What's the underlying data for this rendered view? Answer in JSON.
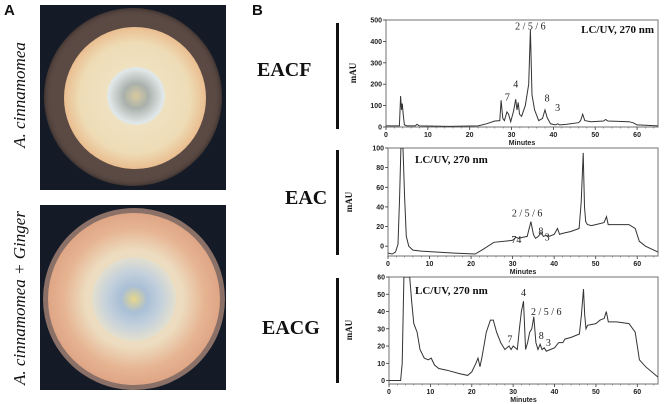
{
  "panel_a": {
    "letter": "A",
    "plates": [
      {
        "label": "A. cinnamomea",
        "description": "culture plate with orange-beige mycelium and white center"
      },
      {
        "label": "A. cinnamomea + Ginger",
        "description": "culture plate with salmon-orange mycelium and bluish-white center"
      }
    ]
  },
  "panel_b": {
    "letter": "B",
    "samples": [
      "EACF",
      "EAC",
      "EACG"
    ]
  },
  "chart_data": [
    {
      "type": "line",
      "sample": "EACF",
      "title": "LC/UV, 270 nm",
      "xlabel": "Minutes",
      "ylabel": "mAU",
      "xlim": [
        0,
        65
      ],
      "ylim": [
        0,
        500
      ],
      "xticks": [
        0,
        10,
        20,
        30,
        40,
        50,
        60
      ],
      "yticks": [
        0,
        100,
        200,
        300,
        400,
        500
      ],
      "grid": false,
      "annotations": [
        {
          "text": "2 / 5 / 6",
          "x": 34.5,
          "y": 455
        },
        {
          "text": "4",
          "x": 31,
          "y": 185
        },
        {
          "text": "7",
          "x": 29,
          "y": 125
        },
        {
          "text": "8",
          "x": 38.5,
          "y": 120
        },
        {
          "text": "3",
          "x": 41,
          "y": 75
        }
      ],
      "x": [
        0,
        3.2,
        3.5,
        3.7,
        3.9,
        4.1,
        4.4,
        5,
        7,
        7.4,
        8,
        15,
        22,
        24,
        26,
        27.2,
        27.5,
        27.9,
        28.3,
        28.9,
        29.3,
        29.8,
        30.5,
        31,
        31.3,
        31.6,
        31.9,
        32.4,
        33.3,
        34.1,
        34.5,
        34.9,
        35.5,
        36.5,
        37.4,
        38,
        38.5,
        39.3,
        40.5,
        41,
        41.5,
        43,
        46,
        46.5,
        47,
        47.5,
        49,
        52,
        52.5,
        53,
        58,
        59,
        60,
        62,
        65
      ],
      "y": [
        5,
        5,
        145,
        80,
        110,
        60,
        10,
        5,
        5,
        12,
        5,
        3,
        5,
        15,
        28,
        30,
        125,
        40,
        30,
        70,
        60,
        25,
        75,
        130,
        80,
        115,
        60,
        50,
        100,
        200,
        455,
        150,
        80,
        30,
        40,
        80,
        45,
        15,
        10,
        15,
        10,
        12,
        20,
        30,
        60,
        30,
        25,
        28,
        35,
        28,
        25,
        20,
        10,
        8,
        5
      ]
    },
    {
      "type": "line",
      "sample": "EAC",
      "title": "LC/UV, 270 nm",
      "xlabel": "Minutes",
      "ylabel": "mAU",
      "xlim": [
        0,
        65
      ],
      "ylim": [
        -10,
        100
      ],
      "xticks": [
        0,
        10,
        20,
        30,
        40,
        50,
        60
      ],
      "yticks": [
        0,
        20,
        40,
        60,
        80,
        100
      ],
      "grid": false,
      "annotations": [
        {
          "text": "2 / 5 / 6",
          "x": 33.5,
          "y": 30
        },
        {
          "text": "7",
          "x": 30.3,
          "y": 3
        },
        {
          "text": "4",
          "x": 31.5,
          "y": 3
        },
        {
          "text": "8",
          "x": 36.8,
          "y": 12
        },
        {
          "text": "3",
          "x": 38.3,
          "y": 6
        }
      ],
      "x": [
        0,
        1,
        1.8,
        2.4,
        2.8,
        3.1,
        3.6,
        4,
        4.4,
        5,
        6,
        8,
        12,
        16,
        21,
        23,
        25.5,
        28,
        30,
        30.8,
        31.5,
        32.5,
        33.5,
        34.4,
        35,
        35.5,
        36.2,
        36.8,
        37.4,
        38,
        38.8,
        40,
        40.8,
        41.3,
        42,
        44,
        46,
        46.5,
        47,
        47.3,
        47.6,
        48,
        49,
        50,
        52,
        52.6,
        53,
        55,
        58,
        59.5,
        60.5,
        62,
        65
      ],
      "y": [
        -7,
        -8,
        -6,
        2,
        50,
        100,
        100,
        50,
        10,
        0,
        -4,
        -5,
        -6,
        -7,
        -8,
        -3,
        4,
        5,
        6,
        9,
        8,
        9,
        10,
        25,
        12,
        8,
        10,
        14,
        10,
        11,
        10,
        12,
        18,
        12,
        13,
        15,
        18,
        45,
        95,
        40,
        25,
        22,
        21,
        22,
        24,
        30,
        22,
        22,
        22,
        18,
        5,
        0,
        -6
      ]
    },
    {
      "type": "line",
      "sample": "EACG",
      "title": "LC/UV, 270 nm",
      "xlabel": "Minutes",
      "ylabel": "mAU",
      "xlim": [
        0,
        65
      ],
      "ylim": [
        -2,
        60
      ],
      "xticks": [
        0,
        10,
        20,
        30,
        40,
        50,
        60
      ],
      "yticks": [
        0,
        10,
        20,
        30,
        40,
        50,
        60
      ],
      "grid": false,
      "annotations": [
        {
          "text": "4",
          "x": 32.5,
          "y": 49
        },
        {
          "text": "2 / 5 / 6",
          "x": 38,
          "y": 38
        },
        {
          "text": "7",
          "x": 29.2,
          "y": 22
        },
        {
          "text": "8",
          "x": 36.8,
          "y": 24
        },
        {
          "text": "3",
          "x": 38.5,
          "y": 20
        }
      ],
      "x": [
        0,
        2.8,
        3.2,
        3.6,
        5,
        5.5,
        6,
        6.8,
        7.5,
        8.5,
        9.5,
        10.2,
        11,
        12,
        14,
        17,
        19,
        20,
        21,
        21.5,
        22,
        22.5,
        23.5,
        24.5,
        25.2,
        26,
        27,
        28,
        29,
        29.5,
        30,
        31,
        31.5,
        32,
        32.5,
        33,
        33.5,
        34,
        34.5,
        35,
        35.5,
        36,
        36.5,
        37,
        37.5,
        38,
        39,
        40,
        41,
        42,
        42.5,
        44,
        46,
        46.5,
        47,
        47.3,
        47.6,
        48,
        50,
        51,
        52,
        52.5,
        53,
        55,
        58,
        59.5,
        60.5,
        62,
        65
      ],
      "y": [
        0,
        0,
        10,
        60,
        60,
        45,
        33,
        28,
        18,
        13,
        12,
        13,
        9,
        7,
        6,
        4,
        3,
        5,
        10,
        13,
        8,
        14,
        28,
        35,
        35,
        28,
        22,
        18,
        20,
        18,
        20,
        18,
        30,
        40,
        46,
        18,
        22,
        28,
        30,
        37,
        22,
        18,
        21,
        18,
        19,
        17,
        18,
        19,
        22,
        22,
        24,
        25,
        27,
        38,
        53,
        38,
        30,
        32,
        33,
        35,
        36,
        40,
        34,
        34,
        33,
        28,
        12,
        8,
        2
      ]
    }
  ]
}
